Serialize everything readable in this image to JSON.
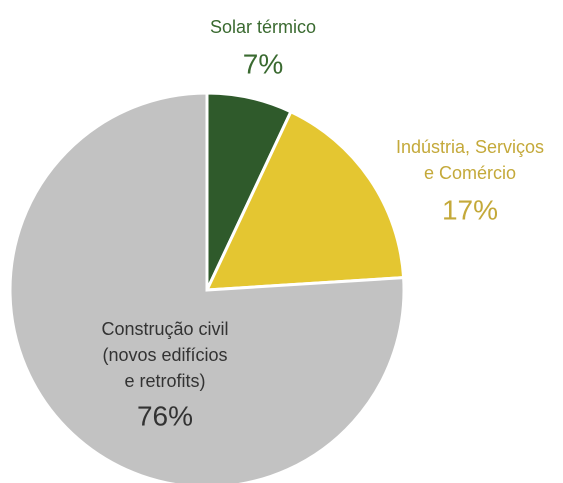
{
  "chart_data": {
    "type": "pie",
    "categories": [
      "Solar térmico",
      "Indústria, Serviços\ne Comércio",
      "Construção civil\n(novos edifícios\ne retrofits)"
    ],
    "values": [
      7,
      17,
      76
    ],
    "value_labels": [
      "7%",
      "17%",
      "76%"
    ],
    "colors": [
      "#2f5a2b",
      "#e4c631",
      "#c2c2c2"
    ],
    "label_colors": [
      "#3a6a30",
      "#c4a93a",
      "#333333"
    ]
  }
}
